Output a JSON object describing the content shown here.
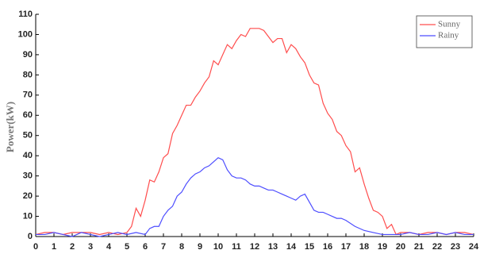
{
  "chart_data": {
    "type": "line",
    "y_label": "Power(kW)",
    "xlim": [
      0,
      24
    ],
    "xticks": [
      0,
      1,
      2,
      3,
      4,
      5,
      6,
      7,
      8,
      9,
      10,
      11,
      12,
      13,
      14,
      15,
      16,
      17,
      18,
      19,
      20,
      21,
      22,
      23,
      24
    ],
    "ylim": [
      0,
      110
    ],
    "yticks": [
      0,
      10,
      20,
      30,
      40,
      50,
      60,
      70,
      80,
      90,
      100,
      110
    ],
    "grid": false,
    "legend": "upper right",
    "series": [
      {
        "name": "Sunny",
        "color": "#ff4d4d",
        "x": [
          0,
          0.5,
          1,
          1.5,
          2,
          2.5,
          3,
          3.5,
          4,
          4.5,
          5,
          5.25,
          5.5,
          5.75,
          6,
          6.25,
          6.5,
          6.75,
          7,
          7.25,
          7.5,
          7.75,
          8,
          8.25,
          8.5,
          8.75,
          9,
          9.25,
          9.5,
          9.75,
          10,
          10.25,
          10.5,
          10.75,
          11,
          11.25,
          11.5,
          11.75,
          12,
          12.25,
          12.5,
          12.75,
          13,
          13.25,
          13.5,
          13.75,
          14,
          14.25,
          14.5,
          14.75,
          15,
          15.25,
          15.5,
          15.75,
          16,
          16.25,
          16.5,
          16.75,
          17,
          17.25,
          17.5,
          17.75,
          18,
          18.25,
          18.5,
          18.75,
          19,
          19.25,
          19.5,
          19.75,
          20,
          20.5,
          21,
          21.5,
          22,
          22.5,
          23,
          23.5,
          24
        ],
        "values": [
          1,
          2,
          2,
          1,
          2,
          2,
          2,
          1,
          2,
          1,
          2,
          5,
          14,
          10,
          18,
          28,
          27,
          32,
          39,
          41,
          51,
          55,
          60,
          65,
          65,
          69,
          72,
          76,
          79,
          87,
          85,
          90,
          95,
          93,
          97,
          100,
          99,
          103,
          103,
          103,
          102,
          99,
          96,
          98,
          98,
          91,
          95,
          93,
          89,
          86,
          80,
          76,
          75,
          66,
          61,
          58,
          52,
          50,
          45,
          42,
          32,
          34,
          26,
          19,
          13,
          12,
          10,
          4,
          6,
          1,
          2,
          2,
          1,
          2,
          2,
          1,
          2,
          2,
          1
        ]
      },
      {
        "name": "Rainy",
        "color": "#4d4dff",
        "x": [
          0,
          0.5,
          1,
          1.5,
          2,
          2.5,
          3,
          3.5,
          4,
          4.5,
          5,
          5.5,
          6,
          6.25,
          6.5,
          6.75,
          7,
          7.25,
          7.5,
          7.75,
          8,
          8.25,
          8.5,
          8.75,
          9,
          9.25,
          9.5,
          9.75,
          10,
          10.25,
          10.5,
          10.75,
          11,
          11.25,
          11.5,
          11.75,
          12,
          12.25,
          12.5,
          12.75,
          13,
          13.25,
          13.5,
          13.75,
          14,
          14.25,
          14.5,
          14.75,
          15,
          15.25,
          15.5,
          15.75,
          16,
          16.25,
          16.5,
          16.75,
          17,
          17.5,
          18,
          18.5,
          19,
          19.5,
          20,
          20.5,
          21,
          21.5,
          22,
          22.5,
          23,
          23.5,
          24
        ],
        "values": [
          1,
          1,
          2,
          1,
          0,
          2,
          1,
          0,
          1,
          2,
          1,
          2,
          1,
          4,
          5,
          5,
          10,
          13,
          15,
          20,
          22,
          26,
          29,
          31,
          32,
          34,
          35,
          37,
          39,
          38,
          33,
          30,
          29,
          29,
          28,
          26,
          25,
          25,
          24,
          23,
          23,
          22,
          21,
          20,
          19,
          18,
          20,
          21,
          17,
          13,
          12,
          12,
          11,
          10,
          9,
          9,
          8,
          5,
          3,
          2,
          1,
          1,
          1,
          2,
          1,
          1,
          2,
          1,
          2,
          1,
          1
        ]
      }
    ]
  }
}
